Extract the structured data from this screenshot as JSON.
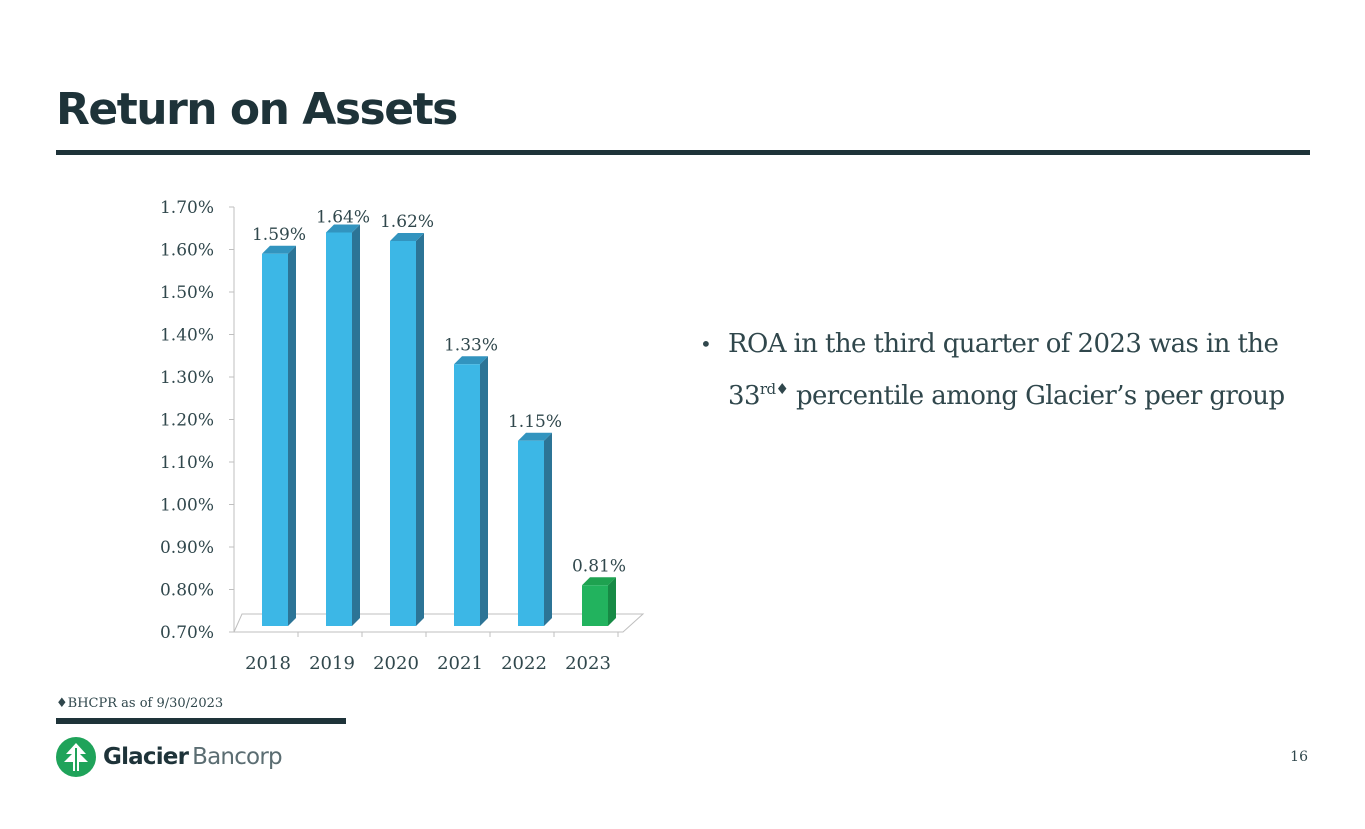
{
  "slide": {
    "title": "Return on Assets",
    "bullet_prefix": "ROA in the third quarter of 2023 was in the 33",
    "bullet_sup": "rd♦",
    "bullet_suffix": " percentile among Glacier’s peer group",
    "footnote": "♦BHCPR as of 9/30/2023",
    "page_number": "16"
  },
  "logo": {
    "name_bold": "Glacier",
    "name_light": "Bancorp"
  },
  "colors": {
    "bar": "#3cb7e6",
    "bar_side": "#2c7496",
    "bar_top": "#3294bf",
    "bar_highlight": "#22b35e",
    "bar_highlight_side": "#178a45",
    "bar_highlight_top": "#1ea250",
    "text": "#30474c",
    "brand": "#1e3339",
    "logo_green": "#1fa35a"
  },
  "chart_data": {
    "type": "bar",
    "title": "",
    "xlabel": "",
    "ylabel": "",
    "categories": [
      "2018",
      "2019",
      "2020",
      "2021",
      "2022",
      "2023"
    ],
    "values": [
      1.59,
      1.64,
      1.62,
      1.33,
      1.15,
      0.81
    ],
    "value_labels": [
      "1.59%",
      "1.64%",
      "1.62%",
      "1.33%",
      "1.15%",
      "0.81%"
    ],
    "highlight_index": 5,
    "ylim": [
      0.7,
      1.7
    ],
    "yticks": [
      0.7,
      0.8,
      0.9,
      1.0,
      1.1,
      1.2,
      1.3,
      1.4,
      1.5,
      1.6,
      1.7
    ],
    "ytick_labels": [
      "0.70%",
      "0.80%",
      "0.90%",
      "1.00%",
      "1.10%",
      "1.20%",
      "1.30%",
      "1.40%",
      "1.50%",
      "1.60%",
      "1.70%"
    ],
    "grid": false,
    "legend": "none"
  }
}
